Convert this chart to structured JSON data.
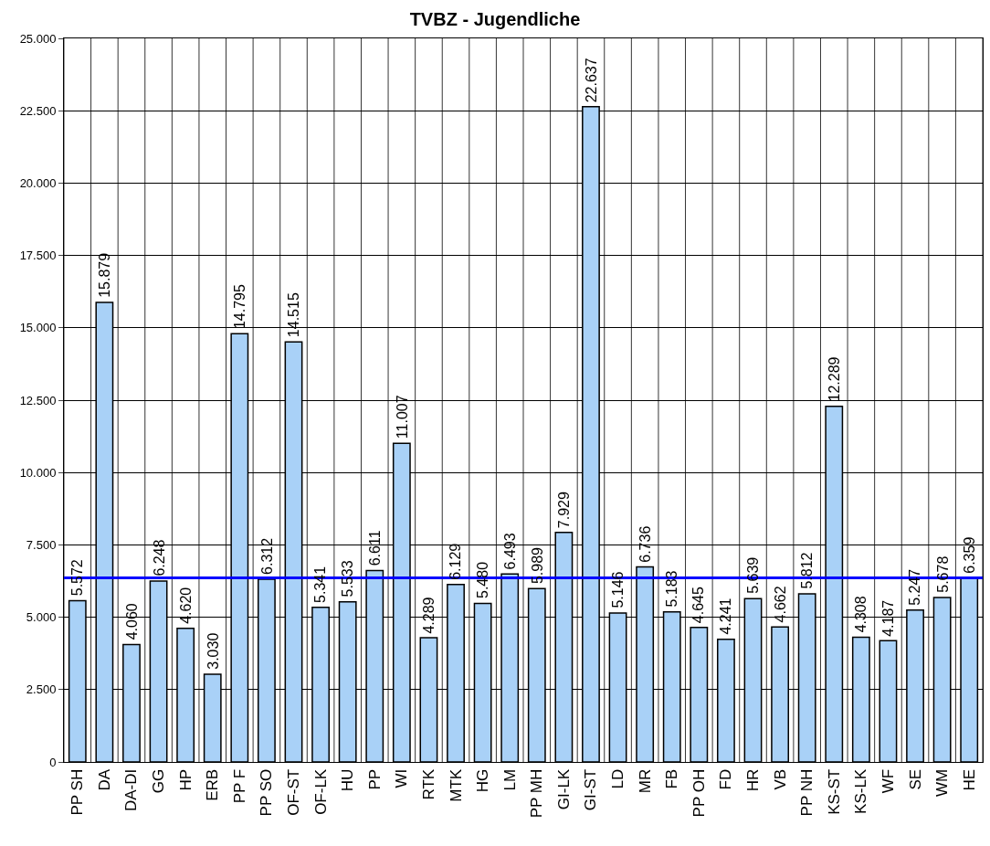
{
  "chart_data": {
    "type": "bar",
    "title": "TVBZ - Jugendliche",
    "categories": [
      "PP SH",
      "DA",
      "DA-DI",
      "GG",
      "HP",
      "ERB",
      "PP F",
      "PP SO",
      "OF-ST",
      "OF-LK",
      "HU",
      "PP",
      "WI",
      "RTK",
      "MTK",
      "HG",
      "LM",
      "PP MH",
      "GI-LK",
      "GI-ST",
      "LD",
      "MR",
      "FB",
      "PP OH",
      "FD",
      "HR",
      "VB",
      "PP NH",
      "KS-ST",
      "KS-LK",
      "WF",
      "SE",
      "WM",
      "HE"
    ],
    "values": [
      5572,
      15879,
      4060,
      6248,
      4620,
      3030,
      14795,
      6312,
      14515,
      5341,
      5533,
      6611,
      11007,
      4289,
      6129,
      5480,
      6493,
      5989,
      7929,
      22637,
      5146,
      6736,
      5183,
      4645,
      4241,
      5639,
      4662,
      5812,
      12289,
      4308,
      4187,
      5247,
      5678,
      6359
    ],
    "value_labels": [
      "5.572",
      "15.879",
      "4.060",
      "6.248",
      "4.620",
      "3.030",
      "14.795",
      "6.312",
      "14.515",
      "5.341",
      "5.533",
      "6.611",
      "11.007",
      "4.289",
      "6.129",
      "5.480",
      "6.493",
      "5.989",
      "7.929",
      "22.637",
      "5.146",
      "6.736",
      "5.183",
      "4.645",
      "4.241",
      "5.639",
      "4.662",
      "5.812",
      "12.289",
      "4.308",
      "4.187",
      "5.247",
      "5.678",
      "6.359"
    ],
    "color": "#a9d1f7",
    "ylim": [
      0,
      25000
    ],
    "yticks": [
      0,
      {
        "value": 2500,
        "label": "2.500"
      },
      {
        "value": 5000,
        "label": "5.000"
      },
      {
        "value": 7500,
        "label": "7.500"
      },
      {
        "value": 10000,
        "label": "10.000"
      },
      {
        "value": 12500,
        "label": "12.500"
      },
      {
        "value": 15000,
        "label": "15.000"
      },
      {
        "value": 17500,
        "label": "17.500"
      },
      {
        "value": 20000,
        "label": "20.000"
      },
      {
        "value": 22500,
        "label": "22.500"
      },
      {
        "value": 25000,
        "label": "25.000"
      }
    ],
    "grid": true,
    "ref_lines": [
      {
        "axis": "y",
        "value": 6359,
        "color": "#0000ff",
        "line_style": "solid"
      }
    ]
  }
}
